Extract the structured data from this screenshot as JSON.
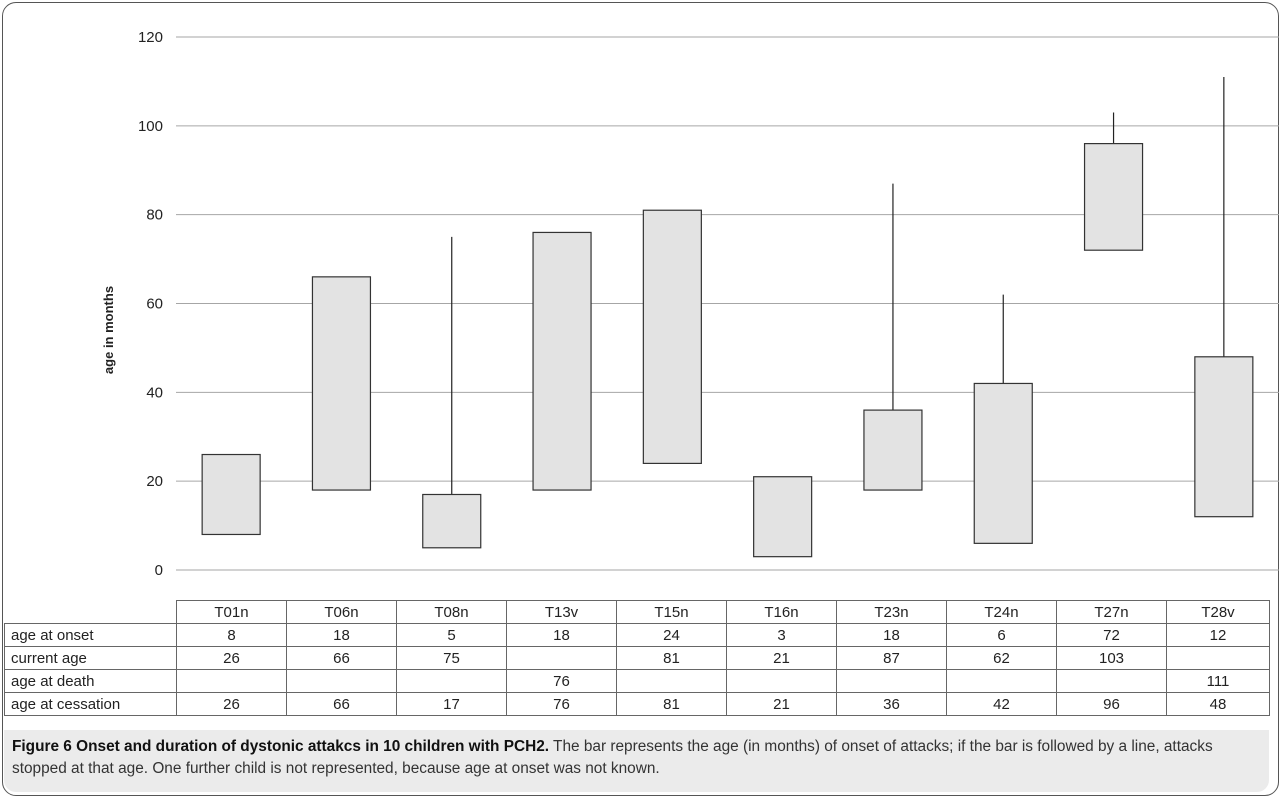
{
  "chart_data": {
    "type": "bar",
    "ylabel": "age in months",
    "ylim": [
      0,
      120
    ],
    "yticks": [
      0,
      20,
      40,
      60,
      80,
      100,
      120
    ],
    "grid": true,
    "categories": [
      "T01n",
      "T06n",
      "T08n",
      "T13v",
      "T15n",
      "T16n",
      "T23n",
      "T24n",
      "T27n",
      "T28v"
    ],
    "series": [
      {
        "name": "age at onset",
        "values": [
          8,
          18,
          5,
          18,
          24,
          3,
          18,
          6,
          72,
          12
        ]
      },
      {
        "name": "current age",
        "values": [
          26,
          66,
          75,
          null,
          81,
          21,
          87,
          62,
          103,
          null
        ]
      },
      {
        "name": "age at death",
        "values": [
          null,
          null,
          null,
          76,
          null,
          null,
          null,
          null,
          null,
          111
        ]
      },
      {
        "name": "age at cessation",
        "values": [
          26,
          66,
          17,
          76,
          81,
          21,
          36,
          42,
          96,
          48
        ]
      }
    ],
    "bar_fill": "#e3e3e3",
    "bar_stroke": "#333333",
    "grid_color": "#a6a6a6"
  },
  "table_rows": [
    {
      "label": "age at onset",
      "cells": [
        "8",
        "18",
        "5",
        "18",
        "24",
        "3",
        "18",
        "6",
        "72",
        "12"
      ]
    },
    {
      "label": "current age",
      "cells": [
        "26",
        "66",
        "75",
        "",
        "81",
        "21",
        "87",
        "62",
        "103",
        ""
      ]
    },
    {
      "label": "age at death",
      "cells": [
        "",
        "",
        "",
        "76",
        "",
        "",
        "",
        "",
        "",
        "111"
      ]
    },
    {
      "label": "age at cessation",
      "cells": [
        "26",
        "66",
        "17",
        "76",
        "81",
        "21",
        "36",
        "42",
        "96",
        "48"
      ]
    }
  ],
  "caption": {
    "bold": "Figure 6 Onset and duration of dystonic attakcs in 10 children with PCH2.",
    "text": " The bar represents the age (in months) of onset of attacks; if the bar is followed by a line, attacks stopped at that age. One further child is not represented, because age at onset was not known."
  }
}
